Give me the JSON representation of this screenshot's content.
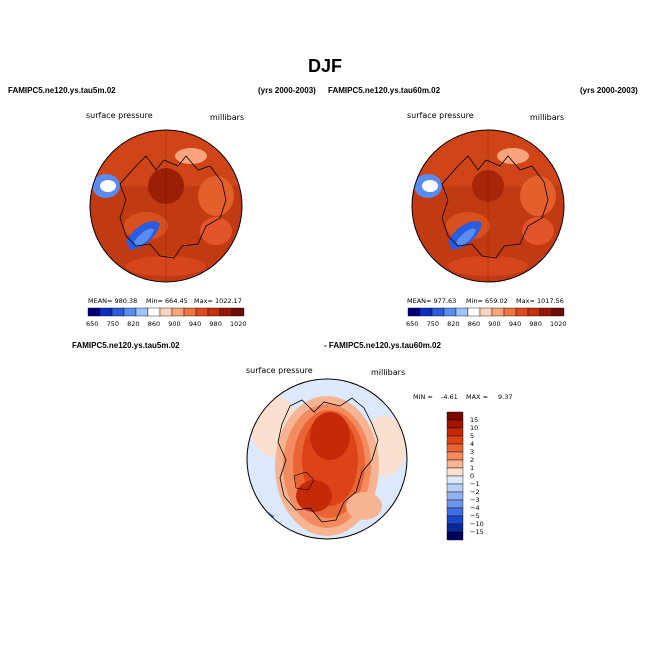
{
  "page": {
    "title": "DJF"
  },
  "headers": {
    "left_model": "FAMIPC5.ne120.ys.tau5m.02",
    "left_years": "(yrs 2000-2003)",
    "right_model": "FAMIPC5.ne120.ys.tau60m.02",
    "right_years": "(yrs 2000-2003)",
    "diff_left": "FAMIPC5.ne120.ys.tau5m.02",
    "diff_right": "- FAMIPC5.ne120.ys.tau60m.02"
  },
  "panels": [
    {
      "variable": "surface pressure",
      "units": "millibars",
      "mean_text": "MEAN= 980.38",
      "min_text": "Min= 664.45",
      "max_text": "Max= 1022.17",
      "colorbar_labels": [
        "650",
        "750",
        "820",
        "860",
        "900",
        "940",
        "980",
        "1020"
      ]
    },
    {
      "variable": "surface pressure",
      "units": "millibars",
      "mean_text": "MEAN= 977.63",
      "min_text": "Min= 659.02",
      "max_text": "Max= 1017.56",
      "colorbar_labels": [
        "650",
        "750",
        "820",
        "860",
        "900",
        "940",
        "980",
        "1020"
      ]
    }
  ],
  "diff_panel": {
    "variable": "surface pressure",
    "units": "millibars",
    "min_label": "MIN =",
    "min_value": "-4.61",
    "max_label": "MAX =",
    "max_value": "9.37",
    "colorbar_labels": [
      "15",
      "10",
      "5",
      "4",
      "3",
      "2",
      "1",
      "0",
      "−1",
      "−2",
      "−3",
      "−4",
      "−5",
      "−10",
      "−15"
    ]
  },
  "colors": {
    "abs_scale": [
      "#000080",
      "#0a2fbf",
      "#2a5be0",
      "#5a8cf0",
      "#9ec3f7",
      "#ffffff",
      "#fcd2b7",
      "#f9a47c",
      "#f27545",
      "#e24a1e",
      "#c5300f",
      "#9a1a05",
      "#6f0d00"
    ],
    "diff_scale": [
      "#7a0800",
      "#a31400",
      "#c52a08",
      "#dd4317",
      "#ea6534",
      "#f28b5f",
      "#f7b493",
      "#fbe0cf",
      "#dce8fb",
      "#b8cff6",
      "#92b3f0",
      "#6b93e8",
      "#3d6fe0",
      "#1a46c9",
      "#0a2a96",
      "#000060"
    ]
  }
}
